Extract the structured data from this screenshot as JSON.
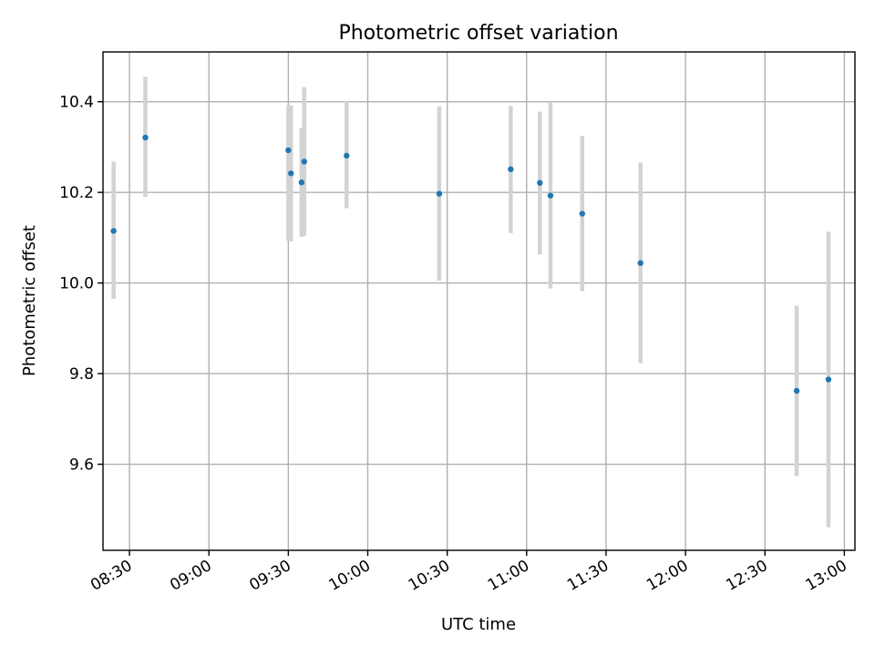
{
  "chart_data": {
    "type": "scatter",
    "title": "Photometric offset variation",
    "xlabel": "UTC time",
    "ylabel": "Photometric offset",
    "x_type": "time",
    "xlim": [
      "08:20",
      "13:04"
    ],
    "ylim": [
      9.41,
      10.51
    ],
    "x_ticks": [
      "08:30",
      "09:00",
      "09:30",
      "10:00",
      "10:30",
      "11:00",
      "11:30",
      "12:00",
      "12:30",
      "13:00"
    ],
    "y_ticks": [
      "9.6",
      "9.8",
      "10.0",
      "10.2",
      "10.4"
    ],
    "y_tick_values": [
      9.6,
      9.8,
      10.0,
      10.2,
      10.4
    ],
    "grid": true,
    "marker_color": "#1f77b4",
    "errorbar_color": "#d3d3d3",
    "points": [
      {
        "x": "08:24",
        "y": 10.115,
        "y_low": 9.965,
        "y_high": 10.268
      },
      {
        "x": "08:36",
        "y": 10.321,
        "y_low": 10.19,
        "y_high": 10.455
      },
      {
        "x": "09:30",
        "y": 10.293,
        "y_low": 10.093,
        "y_high": 10.393
      },
      {
        "x": "09:31",
        "y": 10.242,
        "y_low": 10.092,
        "y_high": 10.392
      },
      {
        "x": "09:35",
        "y": 10.222,
        "y_low": 10.102,
        "y_high": 10.342
      },
      {
        "x": "09:36",
        "y": 10.268,
        "y_low": 10.104,
        "y_high": 10.432
      },
      {
        "x": "09:52",
        "y": 10.281,
        "y_low": 10.165,
        "y_high": 10.401
      },
      {
        "x": "10:27",
        "y": 10.197,
        "y_low": 10.005,
        "y_high": 10.39
      },
      {
        "x": "10:54",
        "y": 10.251,
        "y_low": 10.11,
        "y_high": 10.391
      },
      {
        "x": "11:05",
        "y": 10.221,
        "y_low": 10.063,
        "y_high": 10.378
      },
      {
        "x": "11:09",
        "y": 10.193,
        "y_low": 9.988,
        "y_high": 10.4
      },
      {
        "x": "11:21",
        "y": 10.153,
        "y_low": 9.982,
        "y_high": 10.325
      },
      {
        "x": "11:43",
        "y": 10.044,
        "y_low": 9.823,
        "y_high": 10.266
      },
      {
        "x": "12:42",
        "y": 9.762,
        "y_low": 9.574,
        "y_high": 9.95
      },
      {
        "x": "12:54",
        "y": 9.787,
        "y_low": 9.461,
        "y_high": 10.113
      }
    ]
  }
}
